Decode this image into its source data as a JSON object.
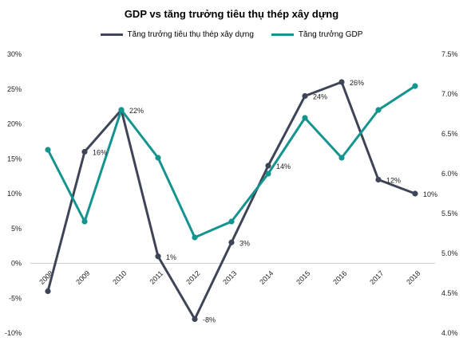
{
  "chart_data": {
    "type": "line",
    "title": "GDP vs tăng trưởng tiêu thụ thép xây dựng",
    "categories": [
      "2008",
      "2009",
      "2010",
      "2011",
      "2012",
      "2013",
      "2014",
      "2015",
      "2016",
      "2017",
      "2018"
    ],
    "left_axis": {
      "ylim": [
        -10,
        30
      ],
      "ticks": [
        "-10%",
        "-5%",
        "0%",
        "5%",
        "10%",
        "15%",
        "20%",
        "25%",
        "30%"
      ]
    },
    "right_axis": {
      "ylim": [
        4.0,
        7.5
      ],
      "ticks": [
        "4.0%",
        "4.5%",
        "5.0%",
        "5.5%",
        "6.0%",
        "6.5%",
        "7.0%",
        "7.5%"
      ]
    },
    "series": [
      {
        "name": "Tăng trưởng tiêu thụ thép xây dựng",
        "axis": "left",
        "color": "#3d4557",
        "values": [
          -4,
          16,
          22,
          1,
          -8,
          3,
          14,
          24,
          26,
          12,
          10
        ],
        "labels": [
          "",
          "16%",
          "22%",
          "1%",
          "-8%",
          "3%",
          "14%",
          "24%",
          "26%",
          "12%",
          "10%"
        ]
      },
      {
        "name": "Tăng trưởng GDP",
        "axis": "right",
        "color": "#14948e",
        "values": [
          6.3,
          5.4,
          6.8,
          6.2,
          5.2,
          5.4,
          6.0,
          6.7,
          6.2,
          6.8,
          7.1
        ]
      }
    ],
    "legend_position": "top",
    "grid": false
  }
}
